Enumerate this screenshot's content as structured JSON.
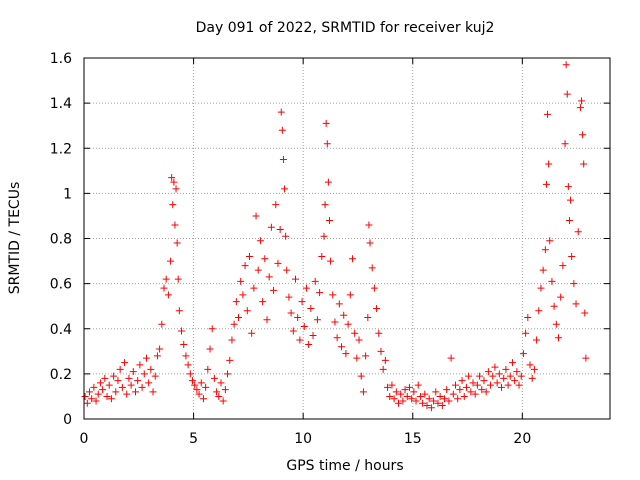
{
  "chart_data": {
    "type": "scatter",
    "title": "Day 091 of 2022, SRMTID for receiver kuj2",
    "xlabel": "GPS time / hours",
    "ylabel": "SRMTID / TECUs",
    "xlim": [
      0,
      24
    ],
    "ylim": [
      0,
      1.6
    ],
    "xticks": [
      0,
      5,
      10,
      15,
      20
    ],
    "xtick_labels": [
      "0",
      "5",
      "10",
      "15",
      "20"
    ],
    "yticks": [
      0,
      0.2,
      0.4,
      0.6,
      0.8,
      1,
      1.2,
      1.4,
      1.6
    ],
    "ytick_labels": [
      "0",
      "0.2",
      "0.4",
      "0.6",
      "0.8",
      "1",
      "1.2",
      "1.4",
      "1.6"
    ],
    "grid": true,
    "marker": "plus",
    "series": [
      {
        "name": "kuj2",
        "color": "#ff0000",
        "points": [
          [
            0.05,
            0.1
          ],
          [
            0.15,
            0.07
          ],
          [
            0.25,
            0.12
          ],
          [
            0.35,
            0.09
          ],
          [
            0.45,
            0.14
          ],
          [
            0.55,
            0.08
          ],
          [
            0.65,
            0.11
          ],
          [
            0.75,
            0.16
          ],
          [
            0.85,
            0.13
          ],
          [
            0.95,
            0.18
          ],
          [
            1.05,
            0.1
          ],
          [
            1.15,
            0.15
          ],
          [
            1.25,
            0.09
          ],
          [
            1.35,
            0.19
          ],
          [
            1.45,
            0.12
          ],
          [
            1.55,
            0.17
          ],
          [
            1.65,
            0.22
          ],
          [
            1.75,
            0.14
          ],
          [
            1.85,
            0.25
          ],
          [
            1.95,
            0.11
          ],
          [
            2.05,
            0.18
          ],
          [
            2.15,
            0.15
          ],
          [
            2.25,
            0.21
          ],
          [
            2.35,
            0.12
          ],
          [
            2.45,
            0.17
          ],
          [
            2.55,
            0.24
          ],
          [
            2.65,
            0.14
          ],
          [
            2.75,
            0.2
          ],
          [
            2.85,
            0.27
          ],
          [
            2.95,
            0.16
          ],
          [
            3.05,
            0.22
          ],
          [
            3.15,
            0.12
          ],
          [
            3.25,
            0.19
          ],
          [
            3.35,
            0.28
          ],
          [
            3.45,
            0.31
          ],
          [
            3.55,
            0.42
          ],
          [
            3.65,
            0.58
          ],
          [
            3.75,
            0.62
          ],
          [
            3.85,
            0.55
          ],
          [
            3.95,
            0.7
          ],
          [
            4.0,
            1.07
          ],
          [
            4.05,
            0.95
          ],
          [
            4.1,
            1.05
          ],
          [
            4.15,
            0.86
          ],
          [
            4.2,
            1.02
          ],
          [
            4.25,
            0.78
          ],
          [
            4.3,
            0.62
          ],
          [
            4.35,
            0.48
          ],
          [
            4.45,
            0.39
          ],
          [
            4.55,
            0.33
          ],
          [
            4.65,
            0.28
          ],
          [
            4.75,
            0.24
          ],
          [
            4.85,
            0.2
          ],
          [
            4.95,
            0.17
          ],
          [
            5.05,
            0.15
          ],
          [
            5.15,
            0.13
          ],
          [
            5.25,
            0.11
          ],
          [
            5.35,
            0.16
          ],
          [
            5.45,
            0.09
          ],
          [
            5.55,
            0.14
          ],
          [
            5.65,
            0.22
          ],
          [
            5.75,
            0.31
          ],
          [
            5.85,
            0.4
          ],
          [
            5.95,
            0.18
          ],
          [
            6.05,
            0.12
          ],
          [
            6.15,
            0.1
          ],
          [
            6.25,
            0.16
          ],
          [
            6.35,
            0.08
          ],
          [
            6.45,
            0.13
          ],
          [
            6.55,
            0.2
          ],
          [
            6.65,
            0.26
          ],
          [
            6.75,
            0.35
          ],
          [
            6.85,
            0.42
          ],
          [
            6.95,
            0.52
          ],
          [
            7.05,
            0.45
          ],
          [
            7.15,
            0.61
          ],
          [
            7.25,
            0.55
          ],
          [
            7.35,
            0.68
          ],
          [
            7.45,
            0.48
          ],
          [
            7.55,
            0.72
          ],
          [
            7.65,
            0.38
          ],
          [
            7.75,
            0.58
          ],
          [
            7.85,
            0.9
          ],
          [
            7.95,
            0.66
          ],
          [
            8.05,
            0.79
          ],
          [
            8.15,
            0.52
          ],
          [
            8.25,
            0.71
          ],
          [
            8.35,
            0.44
          ],
          [
            8.45,
            0.63
          ],
          [
            8.55,
            0.85
          ],
          [
            8.65,
            0.57
          ],
          [
            8.75,
            0.95
          ],
          [
            8.85,
            0.69
          ],
          [
            8.95,
            0.84
          ],
          [
            9.0,
            1.36
          ],
          [
            9.05,
            1.28
          ],
          [
            9.1,
            1.15
          ],
          [
            9.15,
            1.02
          ],
          [
            9.2,
            0.81
          ],
          [
            9.25,
            0.66
          ],
          [
            9.35,
            0.54
          ],
          [
            9.45,
            0.47
          ],
          [
            9.55,
            0.39
          ],
          [
            9.65,
            0.62
          ],
          [
            9.75,
            0.45
          ],
          [
            9.85,
            0.35
          ],
          [
            9.95,
            0.52
          ],
          [
            10.05,
            0.41
          ],
          [
            10.15,
            0.58
          ],
          [
            10.25,
            0.33
          ],
          [
            10.35,
            0.49
          ],
          [
            10.45,
            0.37
          ],
          [
            10.55,
            0.61
          ],
          [
            10.65,
            0.44
          ],
          [
            10.75,
            0.56
          ],
          [
            10.85,
            0.72
          ],
          [
            10.95,
            0.81
          ],
          [
            11.0,
            0.95
          ],
          [
            11.05,
            1.31
          ],
          [
            11.1,
            1.22
          ],
          [
            11.15,
            1.05
          ],
          [
            11.2,
            0.88
          ],
          [
            11.25,
            0.7
          ],
          [
            11.35,
            0.55
          ],
          [
            11.45,
            0.43
          ],
          [
            11.55,
            0.36
          ],
          [
            11.65,
            0.51
          ],
          [
            11.75,
            0.32
          ],
          [
            11.85,
            0.46
          ],
          [
            11.95,
            0.29
          ],
          [
            12.05,
            0.42
          ],
          [
            12.15,
            0.55
          ],
          [
            12.25,
            0.71
          ],
          [
            12.35,
            0.38
          ],
          [
            12.45,
            0.27
          ],
          [
            12.55,
            0.35
          ],
          [
            12.65,
            0.19
          ],
          [
            12.75,
            0.12
          ],
          [
            12.85,
            0.28
          ],
          [
            12.95,
            0.45
          ],
          [
            13.0,
            0.86
          ],
          [
            13.05,
            0.78
          ],
          [
            13.15,
            0.67
          ],
          [
            13.25,
            0.58
          ],
          [
            13.35,
            0.49
          ],
          [
            13.45,
            0.38
          ],
          [
            13.55,
            0.3
          ],
          [
            13.65,
            0.22
          ],
          [
            13.75,
            0.26
          ],
          [
            13.85,
            0.14
          ],
          [
            13.95,
            0.1
          ],
          [
            14.05,
            0.15
          ],
          [
            14.15,
            0.09
          ],
          [
            14.25,
            0.12
          ],
          [
            14.35,
            0.07
          ],
          [
            14.45,
            0.11
          ],
          [
            14.55,
            0.08
          ],
          [
            14.65,
            0.13
          ],
          [
            14.75,
            0.1
          ],
          [
            14.85,
            0.14
          ],
          [
            14.95,
            0.09
          ],
          [
            15.05,
            0.12
          ],
          [
            15.15,
            0.08
          ],
          [
            15.25,
            0.15
          ],
          [
            15.35,
            0.1
          ],
          [
            15.45,
            0.07
          ],
          [
            15.55,
            0.11
          ],
          [
            15.65,
            0.06
          ],
          [
            15.75,
            0.09
          ],
          [
            15.85,
            0.05
          ],
          [
            15.95,
            0.08
          ],
          [
            16.05,
            0.12
          ],
          [
            16.15,
            0.07
          ],
          [
            16.25,
            0.1
          ],
          [
            16.35,
            0.06
          ],
          [
            16.45,
            0.09
          ],
          [
            16.55,
            0.13
          ],
          [
            16.65,
            0.08
          ],
          [
            16.75,
            0.27
          ],
          [
            16.85,
            0.11
          ],
          [
            16.95,
            0.15
          ],
          [
            17.05,
            0.09
          ],
          [
            17.15,
            0.13
          ],
          [
            17.25,
            0.17
          ],
          [
            17.35,
            0.1
          ],
          [
            17.45,
            0.14
          ],
          [
            17.55,
            0.19
          ],
          [
            17.65,
            0.12
          ],
          [
            17.75,
            0.16
          ],
          [
            17.85,
            0.11
          ],
          [
            17.95,
            0.15
          ],
          [
            18.05,
            0.19
          ],
          [
            18.15,
            0.13
          ],
          [
            18.25,
            0.17
          ],
          [
            18.35,
            0.12
          ],
          [
            18.45,
            0.21
          ],
          [
            18.55,
            0.15
          ],
          [
            18.65,
            0.19
          ],
          [
            18.75,
            0.23
          ],
          [
            18.85,
            0.16
          ],
          [
            18.95,
            0.2
          ],
          [
            19.05,
            0.14
          ],
          [
            19.15,
            0.18
          ],
          [
            19.25,
            0.22
          ],
          [
            19.35,
            0.15
          ],
          [
            19.45,
            0.19
          ],
          [
            19.55,
            0.25
          ],
          [
            19.65,
            0.17
          ],
          [
            19.75,
            0.21
          ],
          [
            19.85,
            0.15
          ],
          [
            19.95,
            0.19
          ],
          [
            20.05,
            0.29
          ],
          [
            20.15,
            0.38
          ],
          [
            20.25,
            0.45
          ],
          [
            20.35,
            0.24
          ],
          [
            20.45,
            0.18
          ],
          [
            20.55,
            0.22
          ],
          [
            20.65,
            0.35
          ],
          [
            20.75,
            0.48
          ],
          [
            20.85,
            0.58
          ],
          [
            20.95,
            0.66
          ],
          [
            21.05,
            0.75
          ],
          [
            21.1,
            1.04
          ],
          [
            21.15,
            1.35
          ],
          [
            21.2,
            1.13
          ],
          [
            21.25,
            0.79
          ],
          [
            21.35,
            0.61
          ],
          [
            21.45,
            0.5
          ],
          [
            21.55,
            0.42
          ],
          [
            21.65,
            0.36
          ],
          [
            21.75,
            0.54
          ],
          [
            21.85,
            0.68
          ],
          [
            21.95,
            1.22
          ],
          [
            22.0,
            1.57
          ],
          [
            22.05,
            1.44
          ],
          [
            22.1,
            1.03
          ],
          [
            22.15,
            0.88
          ],
          [
            22.2,
            0.97
          ],
          [
            22.25,
            0.72
          ],
          [
            22.35,
            0.6
          ],
          [
            22.45,
            0.51
          ],
          [
            22.55,
            0.83
          ],
          [
            22.65,
            1.38
          ],
          [
            22.7,
            1.41
          ],
          [
            22.75,
            1.26
          ],
          [
            22.8,
            1.13
          ],
          [
            22.85,
            0.47
          ],
          [
            22.9,
            0.27
          ]
        ]
      }
    ]
  }
}
